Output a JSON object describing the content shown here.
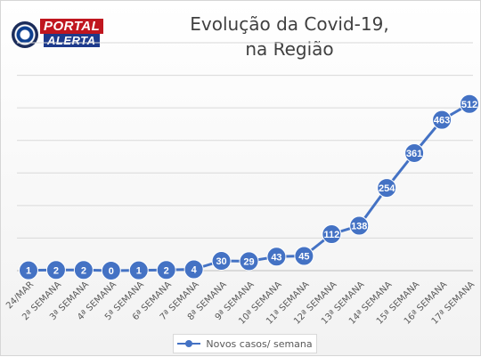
{
  "logo": {
    "line1": "PORTAL",
    "line2": "ALERTA"
  },
  "chart_data": {
    "type": "line",
    "title_lines": [
      "Evolução da Covid-19,",
      "na Região"
    ],
    "categories": [
      "24/MAR",
      "2ª SEMANA",
      "3ª SEMANA",
      "4ª SEMANA",
      "5ª SEMANA",
      "6ª SEMANA",
      "7ª SEMANA",
      "8ª SEMANA",
      "9ª SEMANA",
      "10ª SEMANA",
      "11ª SEMANA",
      "12ª SEMANA",
      "13ª SEMANA",
      "14ª SEMANA",
      "15ª SEMANA",
      "16ª SEMANA",
      "17ª SEMANA"
    ],
    "series": [
      {
        "name": "Novos casos/ semana",
        "values": [
          1,
          2,
          2,
          0,
          1,
          2,
          4,
          30,
          29,
          43,
          45,
          112,
          138,
          254,
          361,
          463,
          512
        ],
        "color": "#4472c4"
      }
    ],
    "ylim": [
      0,
      700
    ],
    "grid": true,
    "y_ticks_shown": false,
    "data_labels": true,
    "legend_position": "bottom"
  }
}
